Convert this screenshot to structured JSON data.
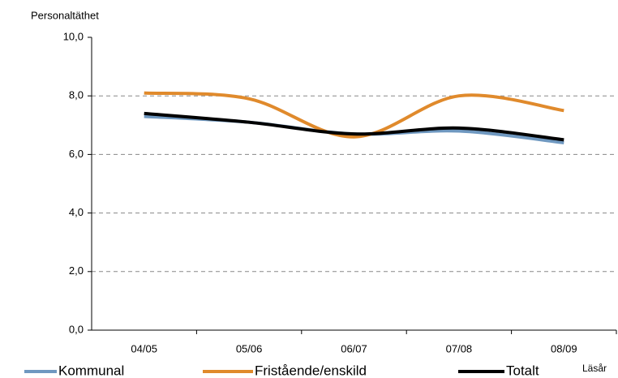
{
  "chart_data": {
    "type": "line",
    "y_label": "Personaltäthet",
    "x_label": "Läsår",
    "categories": [
      "04/05",
      "05/06",
      "06/07",
      "07/08",
      "08/09"
    ],
    "series": [
      {
        "name": "Kommunal",
        "color": "#6f98c0",
        "values": [
          7.3,
          7.1,
          6.7,
          6.8,
          6.4
        ]
      },
      {
        "name": "Fristående/enskild",
        "color": "#e08a2c",
        "values": [
          8.1,
          7.9,
          6.6,
          8.0,
          7.5
        ]
      },
      {
        "name": "Totalt",
        "color": "#000000",
        "values": [
          7.4,
          7.1,
          6.7,
          6.9,
          6.5
        ]
      }
    ],
    "ylim": [
      0,
      10
    ],
    "yticks": [
      {
        "value": 0,
        "label": "0,0"
      },
      {
        "value": 2,
        "label": "2,0"
      },
      {
        "value": 4,
        "label": "4,0"
      },
      {
        "value": 6,
        "label": "6,0"
      },
      {
        "value": 8,
        "label": "8,0"
      },
      {
        "value": 10,
        "label": "10,0"
      }
    ],
    "grid": true,
    "legend": "bottom"
  }
}
